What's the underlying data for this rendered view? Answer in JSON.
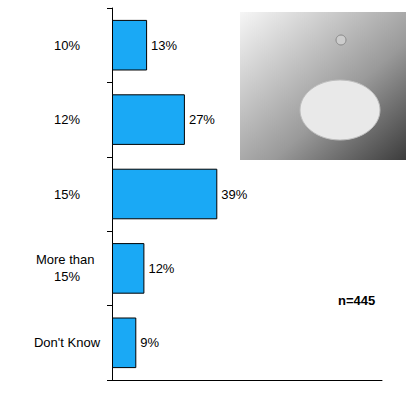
{
  "chart_data": {
    "type": "bar",
    "orientation": "horizontal",
    "categories": [
      "10%",
      "12%",
      "15%",
      "More than 15%",
      "Don't Know"
    ],
    "values": [
      13,
      27,
      39,
      12,
      9
    ],
    "value_labels": [
      "13%",
      "27%",
      "39%",
      "12%",
      "9%"
    ],
    "color": "#1aa9f5",
    "xlim": [
      0,
      100
    ],
    "grid": false,
    "data_labels": true,
    "tick_labels": "y",
    "annotation": "n=445"
  }
}
